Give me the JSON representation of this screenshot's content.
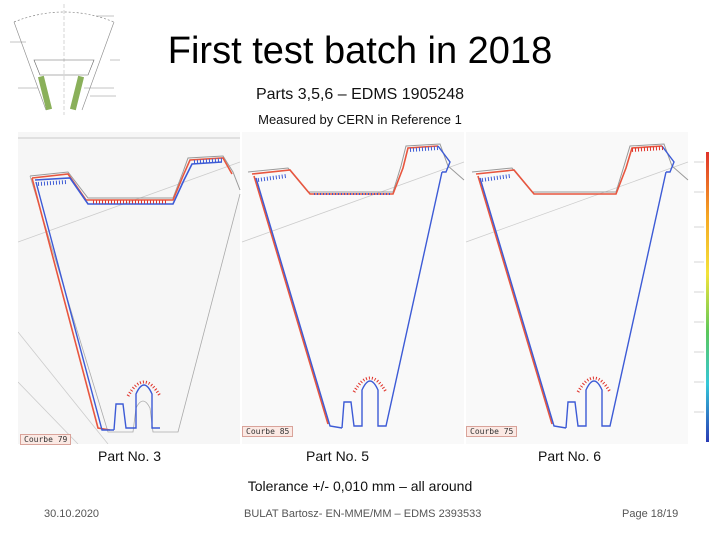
{
  "header": {
    "title": "First test batch in 2018",
    "subtitle": "Parts 3,5,6 – EDMS 1905248",
    "measured": "Measured by CERN in Reference 1"
  },
  "panels": [
    {
      "label": "Part No. 3",
      "tag": "Courbe 79",
      "tag_visible": "Courbe 79"
    },
    {
      "label": "Part No. 5",
      "tag": "Courbe 85",
      "tag_visible": "Courbe 85"
    },
    {
      "label": "Part No. 6",
      "tag": "Courbe 75",
      "tag_visible": "Courbe 75"
    }
  ],
  "tolerance": "Tolerance +/- 0,010 mm – all around",
  "footer": {
    "date": "30.10.2020",
    "author": "BULAT Bartosz- EN-MME/MM – EDMS 2393533",
    "page": "Page 18/19"
  },
  "colors": {
    "nominal": "#e8563f",
    "measured": "#3d5bd6",
    "deviation": "#e0322a",
    "leg_green": "#8ab05a"
  }
}
